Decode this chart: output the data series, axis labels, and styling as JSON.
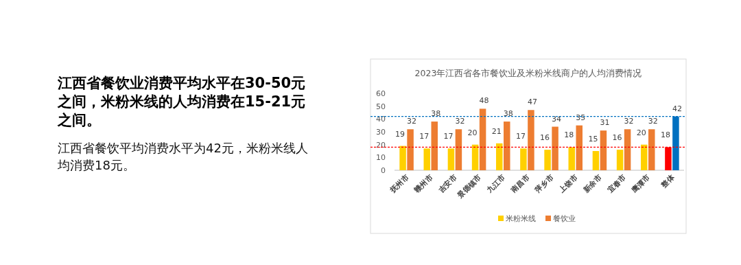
{
  "chart_data": {
    "type": "bar",
    "title": "2023年江西省各市餐饮业及米粉米线商户的人均消费情况",
    "categories": [
      "抚州市",
      "赣州市",
      "吉安市",
      "景德镇市",
      "九江市",
      "南昌市",
      "萍乡市",
      "上饶市",
      "新余市",
      "宜春市",
      "鹰潭市",
      "整体"
    ],
    "series": [
      {
        "name": "米粉米线",
        "color": "#ffd000",
        "colors": [
          "#ffd000",
          "#ffd000",
          "#ffd000",
          "#ffd000",
          "#ffd000",
          "#ffd000",
          "#ffd000",
          "#ffd000",
          "#ffd000",
          "#ffd000",
          "#ffd000",
          "#ff0000"
        ],
        "values": [
          19,
          17,
          17,
          20,
          21,
          17,
          16,
          18,
          15,
          16,
          20,
          18
        ]
      },
      {
        "name": "餐饮业",
        "color": "#ed7d31",
        "colors": [
          "#ed7d31",
          "#ed7d31",
          "#ed7d31",
          "#ed7d31",
          "#ed7d31",
          "#ed7d31",
          "#ed7d31",
          "#ed7d31",
          "#ed7d31",
          "#ed7d31",
          "#ed7d31",
          "#0070c0"
        ],
        "values": [
          32,
          38,
          32,
          48,
          38,
          47,
          34,
          35,
          31,
          32,
          32,
          42
        ]
      }
    ],
    "ylim": [
      0,
      60
    ],
    "yticks": [
      0,
      10,
      20,
      30,
      40,
      50,
      60
    ],
    "ref_lines": [
      {
        "axis": "y",
        "value": 42,
        "color": "#0070c0",
        "line_style": "dashed"
      },
      {
        "axis": "y",
        "value": 18,
        "color": "#ff0000",
        "line_style": "dashed"
      }
    ],
    "data_labels": true,
    "legend": "bottom",
    "annotations": [
      "江西省餐饮业消费平均水平在30-50元之间，米粉米线的人均消费在15-21元之间。",
      "江西省餐饮平均消费水平为42元，米粉米线人均消费18元。"
    ]
  }
}
